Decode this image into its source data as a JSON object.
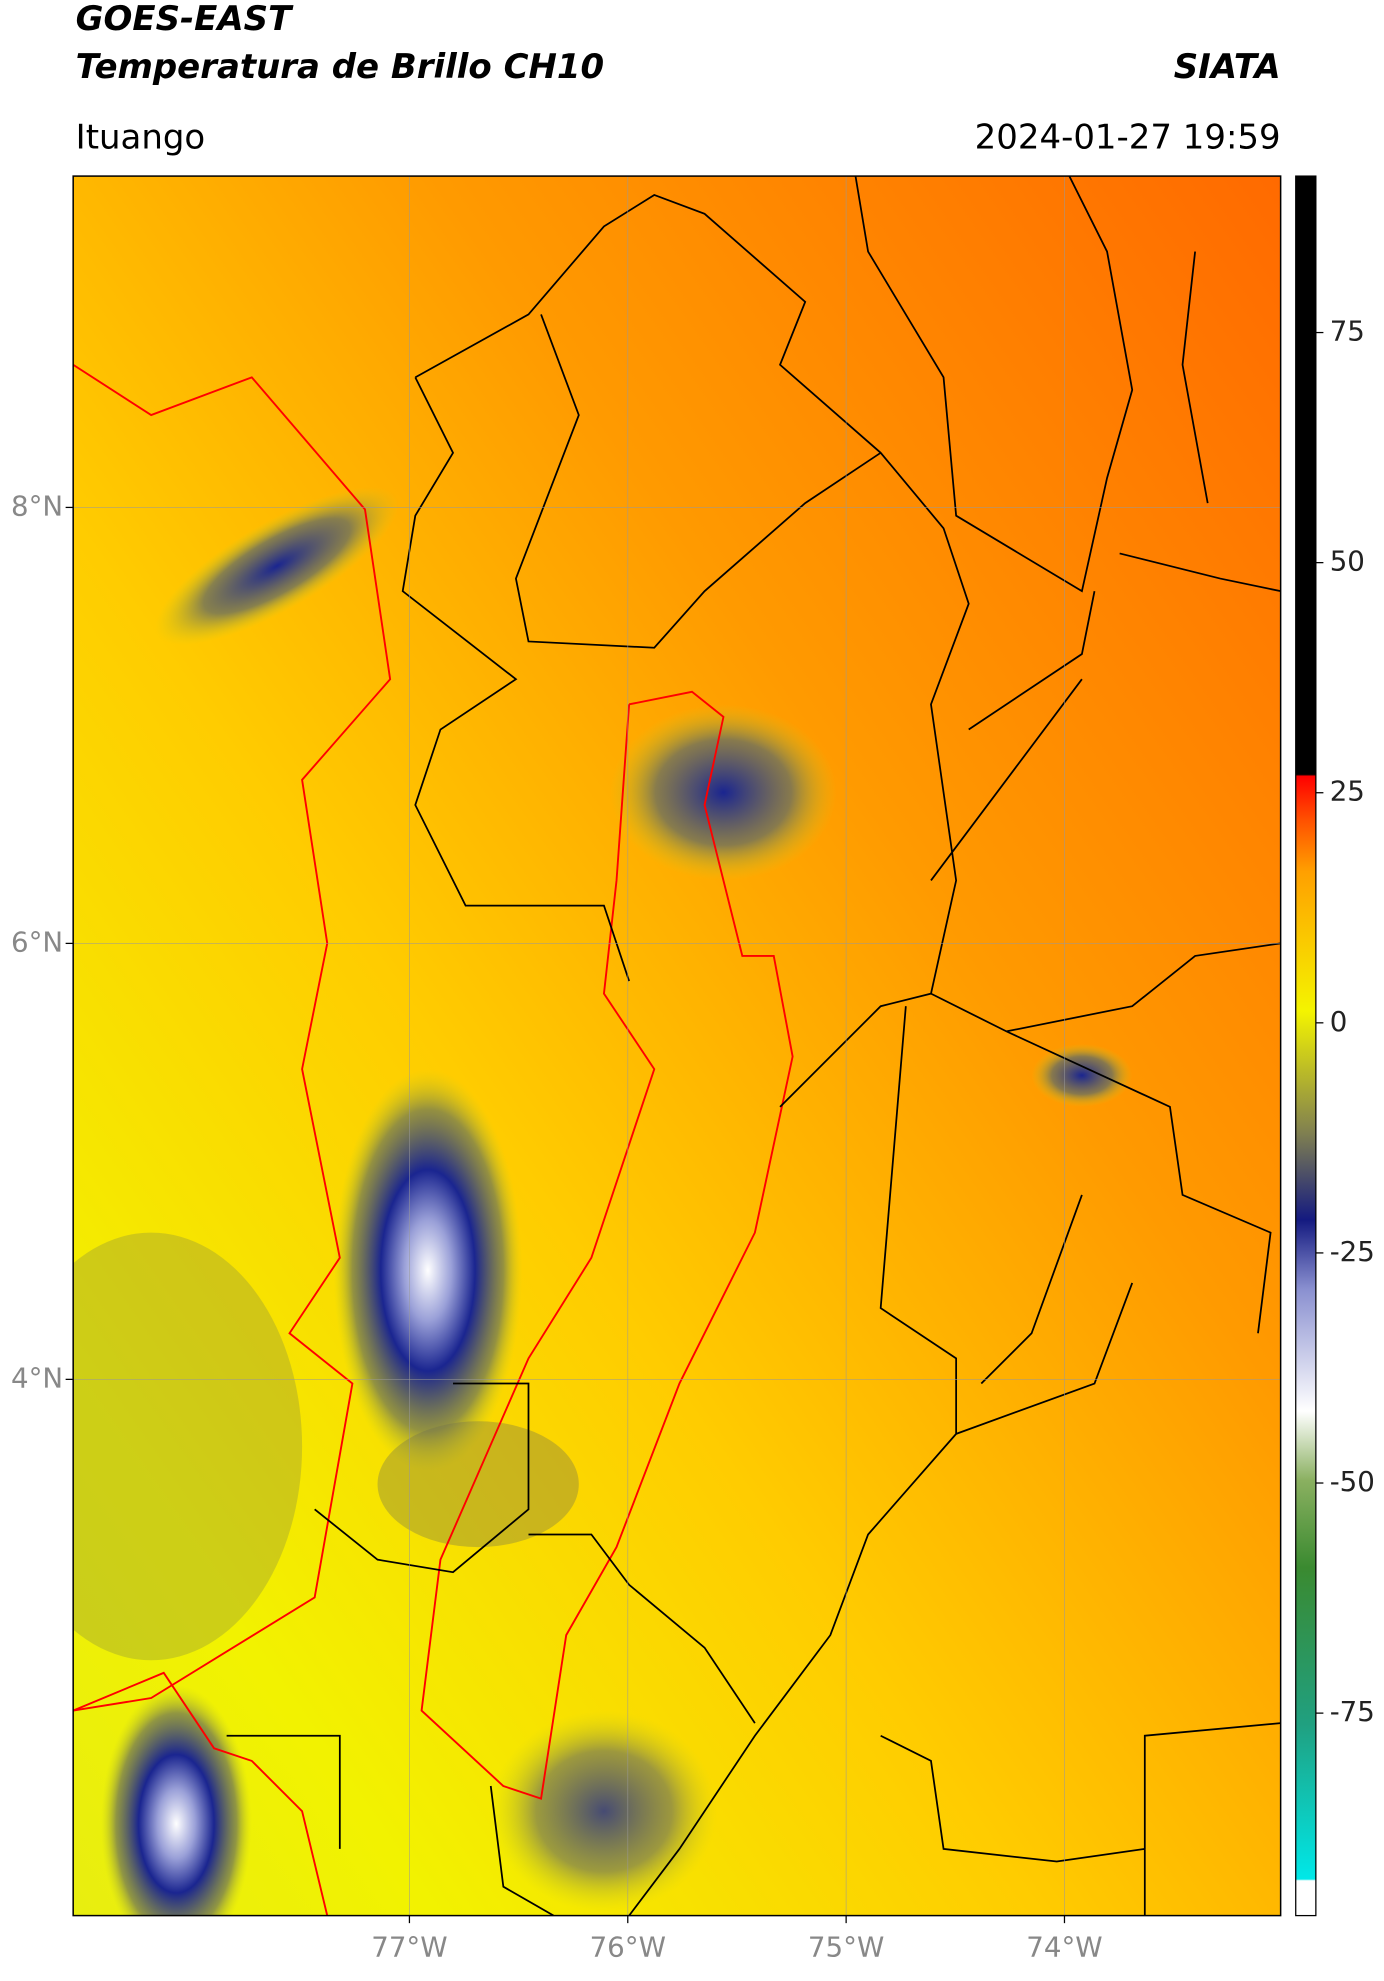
{
  "header": {
    "title": "GOES-EAST",
    "subtitle": "Temperatura de Brillo CH10",
    "source": "SIATA",
    "location": "Ituango",
    "datetime": "2024-01-27 19:59"
  },
  "map": {
    "xlim": [
      -78.54,
      -73.01
    ],
    "ylim": [
      1.54,
      9.52
    ],
    "grid": true,
    "xticks": [
      {
        "value": -77,
        "label": "77°W"
      },
      {
        "value": -76,
        "label": "76°W"
      },
      {
        "value": -75,
        "label": "75°W"
      },
      {
        "value": -74,
        "label": "74°W"
      }
    ],
    "yticks": [
      {
        "value": 4,
        "label": "4°N"
      },
      {
        "value": 6,
        "label": "6°N"
      },
      {
        "value": 8,
        "label": "8°N"
      }
    ]
  },
  "colorbar": {
    "lim": [
      -97,
      92
    ],
    "ticks": [
      -75,
      -50,
      -25,
      0,
      25,
      50,
      75
    ]
  }
}
